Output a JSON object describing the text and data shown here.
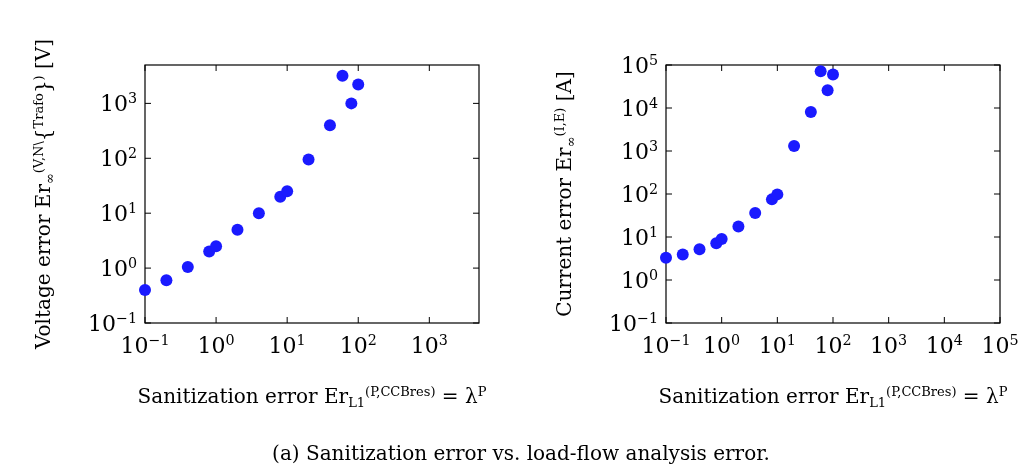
{
  "chart_data": [
    {
      "type": "scatter",
      "ylabel": "Voltage error Er$_{∞}$$^{(V,N\\}${$^{Trafo}$}$^{)}$ [V]",
      "xlabel": "Sanitization error Er$_{L1}$$^{(P,CCBres)}$ = λ$^{P}$",
      "log": "xy",
      "grid": false,
      "marker": "circle",
      "annotations": [
        "(a) Sanitization error vs. load-flow analysis error."
      ],
      "xlim": [
        0.1,
        5000
      ],
      "ylim": [
        0.1,
        5000
      ],
      "xticks": [
        {
          "value": 0.1,
          "label": "10$^{−1}$"
        },
        {
          "value": 1,
          "label": "10$^{0}$"
        },
        {
          "value": 10,
          "label": "10$^{1}$"
        },
        {
          "value": 100,
          "label": "10$^{2}$"
        },
        {
          "value": 1000,
          "label": "10$^{3}$"
        }
      ],
      "yticks": [
        {
          "value": 0.1,
          "label": "10$^{−1}$"
        },
        {
          "value": 1,
          "label": "10$^{0}$"
        },
        {
          "value": 10,
          "label": "10$^{1}$"
        },
        {
          "value": 100,
          "label": "10$^{2}$"
        },
        {
          "value": 1000,
          "label": "10$^{3}$"
        }
      ],
      "series": [
        {
          "color": "#1a1aff",
          "x": [
            0.1,
            0.2,
            0.4,
            0.8,
            1,
            2,
            4,
            8,
            10,
            20,
            40,
            60,
            80,
            100
          ],
          "values": [
            0.4,
            0.6,
            1.05,
            2,
            2.5,
            5,
            10,
            20,
            25,
            95,
            400,
            3200,
            1000,
            2200
          ]
        }
      ]
    },
    {
      "type": "scatter",
      "ylabel": "Current error Er$_{∞}$$^{(I,E)}$ [A]",
      "xlabel": "Sanitization error Er$_{L1}$$^{(P,CCBres)}$ = λ$^{P}$",
      "log": "xy",
      "grid": false,
      "marker": "circle",
      "xlim": [
        0.1,
        100000
      ],
      "ylim": [
        0.1,
        100000
      ],
      "xticks": [
        {
          "value": 0.1,
          "label": "10$^{−1}$"
        },
        {
          "value": 1,
          "label": "10$^{0}$"
        },
        {
          "value": 10,
          "label": "10$^{1}$"
        },
        {
          "value": 100,
          "label": "10$^{2}$"
        },
        {
          "value": 1000,
          "label": "10$^{3}$"
        },
        {
          "value": 10000,
          "label": "10$^{4}$"
        },
        {
          "value": 100000,
          "label": "10$^{5}$"
        }
      ],
      "yticks": [
        {
          "value": 0.1,
          "label": "10$^{−1}$"
        },
        {
          "value": 1,
          "label": "10$^{0}$"
        },
        {
          "value": 10,
          "label": "10$^{1}$"
        },
        {
          "value": 100,
          "label": "10$^{2}$"
        },
        {
          "value": 1000,
          "label": "10$^{3}$"
        },
        {
          "value": 10000,
          "label": "10$^{4}$"
        },
        {
          "value": 100000,
          "label": "10$^{5}$"
        }
      ],
      "series": [
        {
          "color": "#1a1aff",
          "x": [
            0.1,
            0.2,
            0.4,
            0.8,
            1,
            2,
            4,
            8,
            10,
            20,
            40,
            60,
            80,
            100
          ],
          "values": [
            3.3,
            3.9,
            5.2,
            7.2,
            9,
            17.5,
            36,
            75,
            98,
            1300,
            8100,
            72000,
            26000,
            60000
          ]
        }
      ]
    }
  ]
}
